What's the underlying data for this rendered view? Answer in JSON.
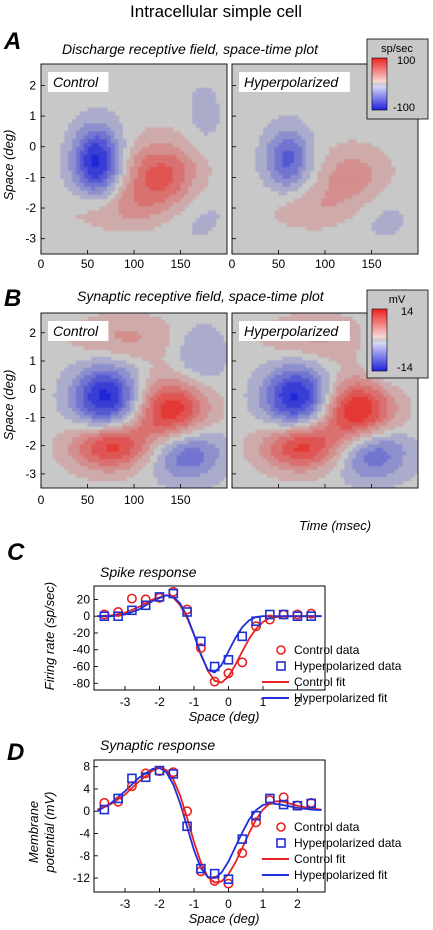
{
  "figure_title": "Intracellular simple cell",
  "panels": {
    "A": {
      "letter": "A",
      "title": "Discharge receptive field, space-time plot",
      "left_label": "Control",
      "right_label": "Hyperpolarized",
      "ylabel": "Space (deg)",
      "colorbar_unit": "sp/sec",
      "colorbar_max": "100",
      "colorbar_min": "-100"
    },
    "B": {
      "letter": "B",
      "title": "Synaptic receptive field, space-time plot",
      "left_label": "Control",
      "right_label": "Hyperpolarized",
      "ylabel": "Space (deg)",
      "xlabel": "Time (msec)",
      "colorbar_unit": "mV",
      "colorbar_max": "14",
      "colorbar_min": "-14"
    },
    "C": {
      "letter": "C",
      "title": "Spike response",
      "ylabel": "Firing rate (sp/sec)",
      "xlabel": "Space (deg)"
    },
    "D": {
      "letter": "D",
      "title": "Synaptic response",
      "ylabel_line1": "Membrane",
      "ylabel_line2": "potential (mV)",
      "xlabel": "Space (deg)"
    }
  },
  "legend": {
    "control_data": "Control data",
    "hyper_data": "Hyperpolarized data",
    "control_fit": "Control fit",
    "hyper_fit": "Hyperpolarized fit"
  },
  "colors": {
    "control": "#e8231f",
    "hyperpolarized": "#1f2fd6",
    "positive": "#e8231f",
    "negative": "#2a2fd8",
    "background_field": "#c8c8c8"
  },
  "chart_data": [
    {
      "type": "heatmap",
      "panel": "A",
      "xlim": [
        0,
        200
      ],
      "ylim": [
        -3.5,
        2.7
      ],
      "xticks": [
        "0",
        "50",
        "100",
        "150"
      ],
      "yticks": [
        "2",
        "1",
        "0",
        "-1",
        "-2",
        "-3"
      ],
      "value_range": [
        -100,
        100
      ],
      "units": "sp/sec",
      "subplots": [
        {
          "name": "Control",
          "regions": [
            {
              "sign": "negative",
              "peak": -100,
              "t": 60,
              "s": -0.5,
              "st": 18,
              "ss": 0.8
            },
            {
              "sign": "positive",
              "peak": 70,
              "t": 130,
              "s": -1.0,
              "st": 30,
              "ss": 0.8
            },
            {
              "sign": "positive",
              "peak": 25,
              "t": 80,
              "s": -2.0,
              "st": 40,
              "ss": 0.5
            },
            {
              "sign": "negative",
              "peak": -20,
              "t": 160,
              "s": -2.0,
              "st": 30,
              "ss": 0.8
            },
            {
              "sign": "negative",
              "peak": -15,
              "t": 175,
              "s": 1.0,
              "st": 15,
              "ss": 0.9
            }
          ]
        },
        {
          "name": "Hyperpolarized",
          "regions": [
            {
              "sign": "negative",
              "peak": -65,
              "t": 60,
              "s": -0.4,
              "st": 17,
              "ss": 0.7
            },
            {
              "sign": "positive",
              "peak": 35,
              "t": 130,
              "s": -1.0,
              "st": 28,
              "ss": 0.7
            },
            {
              "sign": "positive",
              "peak": 20,
              "t": 85,
              "s": -2.0,
              "st": 35,
              "ss": 0.5
            },
            {
              "sign": "negative",
              "peak": -15,
              "t": 160,
              "s": -2.2,
              "st": 25,
              "ss": 0.7
            }
          ]
        }
      ]
    },
    {
      "type": "heatmap",
      "panel": "B",
      "xlim": [
        0,
        200
      ],
      "ylim": [
        -3.5,
        2.7
      ],
      "xticks": [
        "0",
        "50",
        "100",
        "150"
      ],
      "yticks": [
        "2",
        "1",
        "0",
        "-1",
        "-2",
        "-3"
      ],
      "value_range": [
        -14,
        14
      ],
      "units": "mV",
      "subplots": [
        {
          "name": "Control",
          "regions": [
            {
              "sign": "negative",
              "peak": -14,
              "t": 70,
              "s": -0.3,
              "st": 25,
              "ss": 0.8
            },
            {
              "sign": "positive",
              "peak": 13,
              "t": 140,
              "s": -0.8,
              "st": 28,
              "ss": 0.8
            },
            {
              "sign": "positive",
              "peak": 12,
              "t": 75,
              "s": -2.0,
              "st": 30,
              "ss": 0.6
            },
            {
              "sign": "negative",
              "peak": -9,
              "t": 155,
              "s": -2.2,
              "st": 28,
              "ss": 0.7
            },
            {
              "sign": "positive",
              "peak": 4,
              "t": 90,
              "s": 1.8,
              "st": 40,
              "ss": 0.6
            },
            {
              "sign": "negative",
              "peak": -4,
              "t": 170,
              "s": 1.2,
              "st": 20,
              "ss": 0.8
            }
          ]
        },
        {
          "name": "Hyperpolarized",
          "regions": [
            {
              "sign": "negative",
              "peak": -14,
              "t": 70,
              "s": -0.3,
              "st": 25,
              "ss": 0.8
            },
            {
              "sign": "positive",
              "peak": 14,
              "t": 135,
              "s": -0.8,
              "st": 28,
              "ss": 0.8
            },
            {
              "sign": "positive",
              "peak": 12,
              "t": 75,
              "s": -2.0,
              "st": 30,
              "ss": 0.6
            },
            {
              "sign": "negative",
              "peak": -9,
              "t": 150,
              "s": -2.2,
              "st": 28,
              "ss": 0.7
            },
            {
              "sign": "positive",
              "peak": 4,
              "t": 90,
              "s": 1.8,
              "st": 40,
              "ss": 0.6
            },
            {
              "sign": "negative",
              "peak": -4,
              "t": 170,
              "s": 1.2,
              "st": 20,
              "ss": 0.8
            }
          ]
        }
      ]
    },
    {
      "type": "line",
      "panel": "C",
      "xlim": [
        -3.9,
        2.8
      ],
      "ylim": [
        -88,
        36
      ],
      "xticks": [
        -3,
        -2,
        -1,
        0,
        1,
        2
      ],
      "yticks": [
        20,
        0,
        -20,
        -40,
        -60,
        -80
      ],
      "series": [
        {
          "name": "Control data",
          "kind": "points",
          "color": "control",
          "marker": "circle",
          "x": [
            -3.6,
            -3.2,
            -2.8,
            -2.4,
            -2.0,
            -1.6,
            -1.2,
            -0.8,
            -0.4,
            0.0,
            0.4,
            0.8,
            1.2,
            1.6,
            2.0,
            2.4
          ],
          "y": [
            2,
            5,
            21,
            20,
            22,
            29,
            8,
            -38,
            -78,
            -68,
            -55,
            -12,
            -4,
            2,
            2,
            3
          ]
        },
        {
          "name": "Hyperpolarized data",
          "kind": "points",
          "color": "hyperpolarized",
          "marker": "square",
          "x": [
            -3.6,
            -3.2,
            -2.8,
            -2.4,
            -2.0,
            -1.6,
            -1.2,
            -0.8,
            -0.4,
            0.0,
            0.4,
            0.8,
            1.2,
            1.6,
            2.0,
            2.4
          ],
          "y": [
            0,
            0,
            7,
            13,
            23,
            27,
            5,
            -30,
            -60,
            -52,
            -24,
            -6,
            2,
            2,
            0,
            0
          ]
        },
        {
          "name": "Control fit",
          "kind": "line",
          "color": "control",
          "x": [
            -3.8,
            -3.4,
            -3.0,
            -2.6,
            -2.2,
            -1.8,
            -1.6,
            -1.4,
            -1.2,
            -1.0,
            -0.8,
            -0.6,
            -0.4,
            -0.2,
            0.0,
            0.2,
            0.4,
            0.6,
            0.8,
            1.0,
            1.2,
            1.6,
            2.0,
            2.4,
            2.7
          ],
          "y": [
            0,
            1,
            4,
            11,
            20,
            25,
            22,
            13,
            -2,
            -22,
            -45,
            -65,
            -77,
            -79,
            -72,
            -58,
            -42,
            -27,
            -15,
            -7,
            -2,
            0,
            0,
            0,
            0
          ]
        },
        {
          "name": "Hyperpolarized fit",
          "kind": "line",
          "color": "hyperpolarized",
          "x": [
            -3.8,
            -3.4,
            -3.0,
            -2.6,
            -2.2,
            -1.8,
            -1.6,
            -1.4,
            -1.2,
            -1.0,
            -0.8,
            -0.6,
            -0.4,
            -0.2,
            0.0,
            0.2,
            0.4,
            0.6,
            0.8,
            1.0,
            1.2,
            1.6,
            2.0,
            2.4,
            2.7
          ],
          "y": [
            0,
            0,
            2,
            8,
            18,
            25,
            23,
            15,
            0,
            -22,
            -46,
            -64,
            -67,
            -58,
            -42,
            -26,
            -13,
            -5,
            -1,
            0,
            0,
            0,
            0,
            0,
            0
          ]
        }
      ]
    },
    {
      "type": "line",
      "panel": "D",
      "xlim": [
        -3.9,
        2.8
      ],
      "ylim": [
        -14.5,
        9.2
      ],
      "xticks": [
        -3,
        -2,
        -1,
        0,
        1,
        2
      ],
      "yticks": [
        8,
        4,
        0,
        -4,
        -8,
        -12
      ],
      "series": [
        {
          "name": "Control data",
          "kind": "points",
          "color": "control",
          "marker": "circle",
          "x": [
            -3.6,
            -3.2,
            -2.8,
            -2.4,
            -2.0,
            -1.6,
            -1.2,
            -0.8,
            -0.4,
            0.0,
            0.4,
            0.8,
            1.2,
            1.6,
            2.0,
            2.4
          ],
          "y": [
            1.5,
            1.7,
            4.5,
            6.8,
            7.2,
            7.0,
            0.0,
            -10.8,
            -12.5,
            -13.0,
            -7.5,
            -2.0,
            2.0,
            2.5,
            1.0,
            1.5
          ]
        },
        {
          "name": "Hyperpolarized data",
          "kind": "points",
          "color": "hyperpolarized",
          "marker": "square",
          "x": [
            -3.6,
            -3.2,
            -2.8,
            -2.4,
            -2.0,
            -1.6,
            -1.2,
            -0.8,
            -0.4,
            0.0,
            0.4,
            0.8,
            1.2,
            1.6,
            2.0,
            2.4
          ],
          "y": [
            0.3,
            2.3,
            5.9,
            6.1,
            7.3,
            6.7,
            -2.7,
            -10.3,
            -11.2,
            -12.2,
            -5.0,
            -0.8,
            2.3,
            1.2,
            1.0,
            1.4
          ]
        },
        {
          "name": "Control fit",
          "kind": "line",
          "color": "control",
          "x": [
            -3.8,
            -3.4,
            -3.0,
            -2.6,
            -2.2,
            -2.0,
            -1.8,
            -1.6,
            -1.4,
            -1.2,
            -1.0,
            -0.8,
            -0.6,
            -0.4,
            -0.2,
            0.0,
            0.2,
            0.4,
            0.6,
            0.8,
            1.0,
            1.2,
            1.4,
            1.6,
            2.0,
            2.4,
            2.7
          ],
          "y": [
            0.3,
            1.3,
            3.0,
            5.3,
            7.3,
            7.8,
            7.4,
            5.7,
            2.8,
            -1.2,
            -5.5,
            -9.2,
            -11.8,
            -12.8,
            -12.6,
            -11.3,
            -9.2,
            -6.6,
            -3.9,
            -1.5,
            0.3,
            1.4,
            1.8,
            1.7,
            1.0,
            0.5,
            0.3
          ]
        },
        {
          "name": "Hyperpolarized fit",
          "kind": "line",
          "color": "hyperpolarized",
          "x": [
            -3.8,
            -3.4,
            -3.0,
            -2.6,
            -2.2,
            -2.0,
            -1.8,
            -1.6,
            -1.4,
            -1.2,
            -1.0,
            -0.8,
            -0.6,
            -0.4,
            -0.2,
            0.0,
            0.2,
            0.4,
            0.6,
            0.8,
            1.0,
            1.2,
            1.4,
            1.6,
            2.0,
            2.4,
            2.7
          ],
          "y": [
            0.0,
            1.5,
            3.6,
            6.0,
            7.6,
            7.8,
            7.0,
            4.8,
            1.4,
            -2.8,
            -7.0,
            -10.2,
            -11.8,
            -12.0,
            -11.0,
            -9.0,
            -6.4,
            -3.8,
            -1.5,
            0.2,
            1.1,
            1.4,
            1.3,
            1.1,
            0.6,
            0.3,
            0.2
          ]
        }
      ]
    }
  ]
}
